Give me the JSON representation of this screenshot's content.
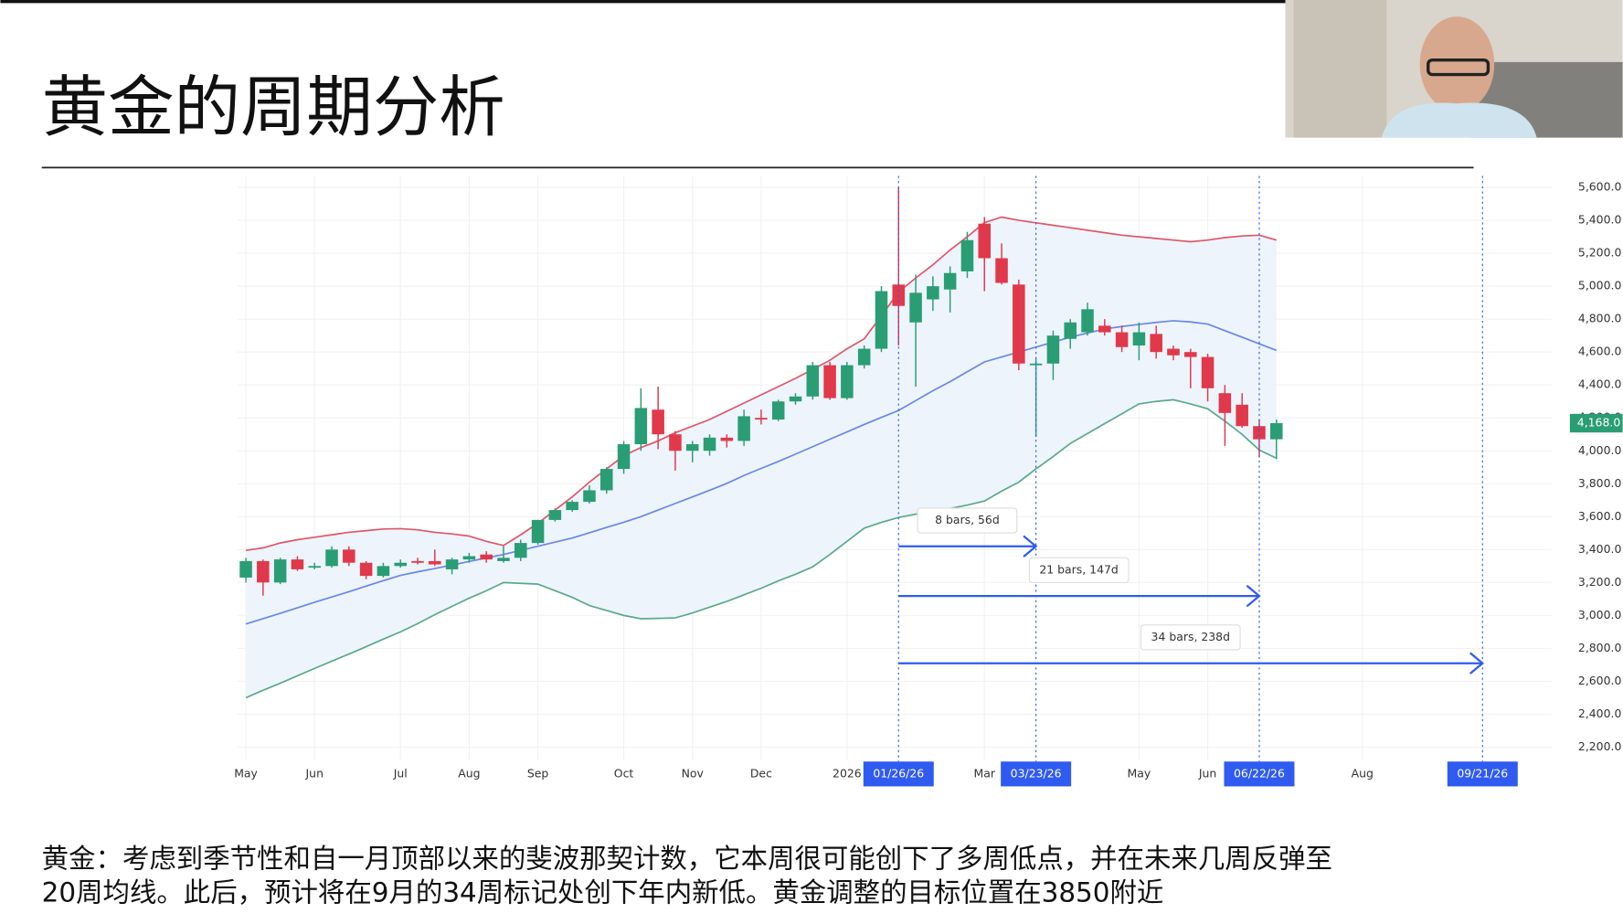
{
  "header": {
    "title": "黄金的周期分析"
  },
  "chart_data": {
    "type": "candlestick",
    "up_color": "#2a9d74",
    "down_color": "#e0394b",
    "candles": {
      "open": [
        3230,
        3330,
        3200,
        3340,
        3290,
        3300,
        3400,
        3320,
        3240,
        3300,
        3330,
        3330,
        3280,
        3340,
        3370,
        3330,
        3350,
        3440,
        3580,
        3640,
        3690,
        3760,
        3890,
        4040,
        4250,
        4100,
        4000,
        4000,
        4080,
        4060,
        4200,
        4190,
        4300,
        4330,
        4520,
        4320,
        4520,
        4620,
        5010,
        4780,
        4920,
        4980,
        5090,
        5380,
        5170,
        5010,
        4520,
        4530,
        4680,
        4720,
        4760,
        4720,
        4640,
        4710,
        4620,
        4600,
        4570,
        4350,
        4280,
        4150,
        4070
      ],
      "high": [
        3350,
        3340,
        3350,
        3360,
        3320,
        3420,
        3420,
        3330,
        3320,
        3340,
        3350,
        3400,
        3350,
        3380,
        3390,
        3420,
        3460,
        3580,
        3650,
        3700,
        3790,
        3900,
        4060,
        4380,
        4390,
        4120,
        4060,
        4100,
        4100,
        4250,
        4250,
        4310,
        4350,
        4540,
        4540,
        4540,
        4640,
        5000,
        5600,
        5070,
        5060,
        5120,
        5330,
        5420,
        5260,
        5040,
        4560,
        4730,
        4800,
        4900,
        4800,
        4760,
        4780,
        4760,
        4640,
        4620,
        4590,
        4400,
        4350,
        4190,
        4190
      ],
      "low": [
        3200,
        3120,
        3190,
        3270,
        3280,
        3290,
        3300,
        3220,
        3230,
        3290,
        3310,
        3300,
        3250,
        3320,
        3320,
        3320,
        3330,
        3430,
        3570,
        3630,
        3680,
        3740,
        3860,
        4000,
        4010,
        3880,
        3930,
        3970,
        4020,
        4030,
        4160,
        4180,
        4280,
        4310,
        4310,
        4310,
        4500,
        4600,
        4640,
        4390,
        4850,
        4840,
        5050,
        4970,
        5010,
        4490,
        4085,
        4430,
        4620,
        4700,
        4700,
        4600,
        4550,
        4560,
        4550,
        4380,
        4300,
        4030,
        4140,
        3960,
        3950
      ],
      "close": [
        3330,
        3200,
        3340,
        3280,
        3300,
        3400,
        3320,
        3240,
        3300,
        3320,
        3320,
        3310,
        3340,
        3360,
        3340,
        3350,
        3440,
        3580,
        3640,
        3690,
        3760,
        3890,
        4040,
        4260,
        4100,
        4000,
        4040,
        4080,
        4060,
        4210,
        4190,
        4300,
        4330,
        4520,
        4320,
        4520,
        4620,
        4970,
        4880,
        4960,
        5000,
        5080,
        5280,
        5170,
        5020,
        4530,
        4530,
        4700,
        4780,
        4860,
        4720,
        4630,
        4720,
        4600,
        4580,
        4570,
        4380,
        4230,
        4150,
        4070,
        4168
      ]
    },
    "bands": [
      {
        "color": "#e0566a",
        "values": [
          3395,
          3410,
          3440,
          3460,
          3475,
          3490,
          3505,
          3515,
          3525,
          3527,
          3520,
          3505,
          3495,
          3482,
          3450,
          3425,
          3490,
          3560,
          3640,
          3720,
          3810,
          3890,
          3970,
          4020,
          4060,
          4110,
          4150,
          4190,
          4240,
          4290,
          4340,
          4390,
          4440,
          4495,
          4550,
          4620,
          4680,
          4820,
          4965,
          5050,
          5130,
          5220,
          5300,
          5386,
          5420,
          5400,
          5385,
          5370,
          5355,
          5340,
          5325,
          5310,
          5300,
          5290,
          5280,
          5270,
          5280,
          5295,
          5305,
          5310,
          5280
        ]
      },
      {
        "color": "#6a86ea",
        "values": [
          2948,
          2980,
          3013,
          3046,
          3080,
          3112,
          3144,
          3178,
          3211,
          3243,
          3265,
          3285,
          3306,
          3328,
          3349,
          3370,
          3395,
          3420,
          3445,
          3470,
          3502,
          3535,
          3566,
          3600,
          3640,
          3680,
          3720,
          3760,
          3802,
          3850,
          3893,
          3935,
          3980,
          4025,
          4070,
          4115,
          4160,
          4203,
          4245,
          4305,
          4365,
          4420,
          4480,
          4540,
          4570,
          4600,
          4630,
          4660,
          4690,
          4715,
          4740,
          4755,
          4768,
          4780,
          4790,
          4783,
          4770,
          4730,
          4690,
          4650,
          4610
        ]
      },
      {
        "color": "#5aa98a",
        "values": [
          2500,
          2545,
          2588,
          2633,
          2678,
          2722,
          2765,
          2810,
          2856,
          2900,
          2950,
          3005,
          3055,
          3105,
          3150,
          3200,
          3195,
          3190,
          3150,
          3110,
          3060,
          3030,
          3000,
          2980,
          2982,
          2985,
          3015,
          3050,
          3085,
          3125,
          3165,
          3210,
          3250,
          3295,
          3370,
          3450,
          3530,
          3565,
          3595,
          3615,
          3635,
          3650,
          3670,
          3695,
          3755,
          3810,
          3890,
          3965,
          4045,
          4105,
          4165,
          4225,
          4285,
          4300,
          4310,
          4285,
          4255,
          4180,
          4100,
          4005,
          3955
        ]
      }
    ],
    "band_fill": "#eef4fb",
    "last_price": {
      "value": 4168,
      "label": "4,168.0"
    },
    "xlim": [
      -0.5,
      76
    ],
    "xticks": [
      {
        "value": 0,
        "label": "May"
      },
      {
        "value": 4,
        "label": "Jun"
      },
      {
        "value": 9,
        "label": "Jul"
      },
      {
        "value": 13,
        "label": "Aug"
      },
      {
        "value": 17,
        "label": "Sep"
      },
      {
        "value": 22,
        "label": "Oct"
      },
      {
        "value": 26,
        "label": "Nov"
      },
      {
        "value": 30,
        "label": "Dec"
      },
      {
        "value": 35,
        "label": "2026"
      },
      {
        "value": 43,
        "label": "Mar"
      },
      {
        "value": 52,
        "label": "May"
      },
      {
        "value": 56,
        "label": "Jun"
      },
      {
        "value": 65,
        "label": "Aug"
      }
    ],
    "ylim": [
      1930,
      5670
    ],
    "yticks": [
      {
        "value": 2200,
        "label": "2,200.0"
      },
      {
        "value": 2400,
        "label": "2,400.0"
      },
      {
        "value": 2600,
        "label": "2,600.0"
      },
      {
        "value": 2800,
        "label": "2,800.0"
      },
      {
        "value": 3000,
        "label": "3,000.0"
      },
      {
        "value": 3200,
        "label": "3,200.0"
      },
      {
        "value": 3400,
        "label": "3,400.0"
      },
      {
        "value": 3600,
        "label": "3,600.0"
      },
      {
        "value": 3800,
        "label": "3,800.0"
      },
      {
        "value": 4000,
        "label": "4,000.0"
      },
      {
        "value": 4200,
        "label": "4,200.0"
      },
      {
        "value": 4400,
        "label": "4,400.0"
      },
      {
        "value": 4600,
        "label": "4,600.0"
      },
      {
        "value": 4800,
        "label": "4,800.0"
      },
      {
        "value": 5000,
        "label": "5,000.0"
      },
      {
        "value": 5200,
        "label": "5,200.0"
      },
      {
        "value": 5400,
        "label": "5,400.0"
      },
      {
        "value": 5600,
        "label": "5,600.0"
      }
    ],
    "grid": true,
    "markers": [
      {
        "value": 38,
        "label": "01/26/26"
      },
      {
        "value": 46,
        "label": "03/23/26"
      },
      {
        "value": 59,
        "label": "06/22/26"
      },
      {
        "value": 72,
        "label": "09/21/26"
      }
    ],
    "measures": [
      "8 bars, 56d",
      "21 bars, 147d",
      "34 bars, 238d"
    ],
    "marker_color": "#2f5bf0"
  },
  "caption": {
    "lines": [
      "黄金：考虑到季节性和自一月顶部以来的斐波那契计数，它本周很可能创下了多周低点，并在未来几周反弹至",
      "20周均线。此后，预计将在9月的34周标记处创下年内新低。黄金调整的目标位置在3850附近"
    ]
  }
}
